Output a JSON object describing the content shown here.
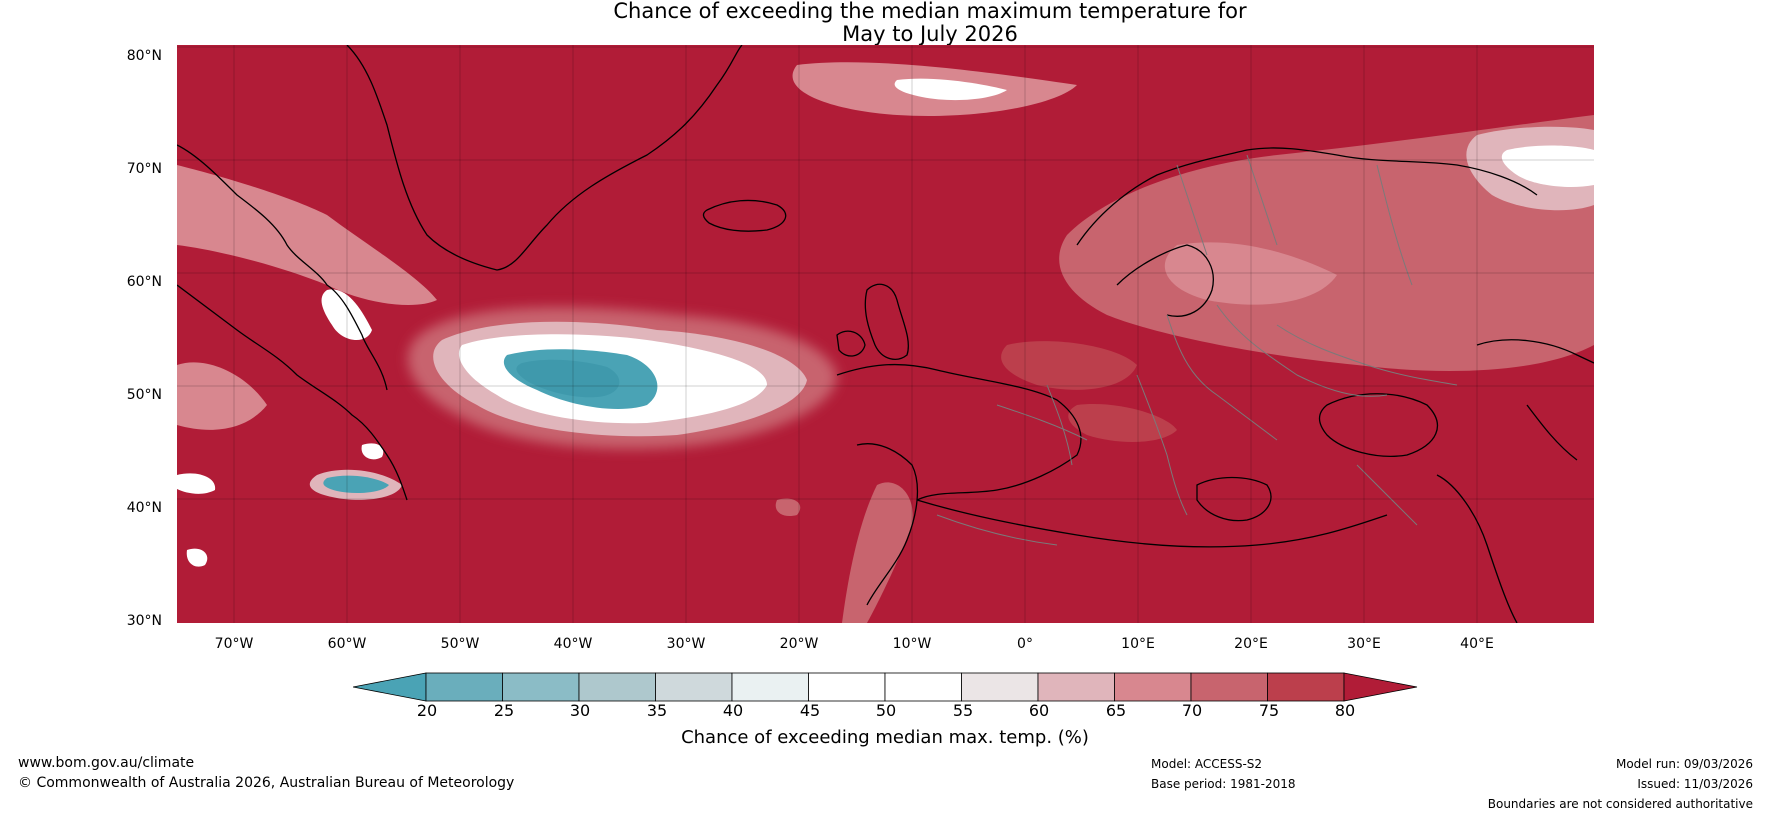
{
  "title": {
    "line1": "Chance of exceeding the median maximum temperature for",
    "line2": "May to July 2026"
  },
  "colors": {
    "ocean_background": "#b11c37",
    "coast": "#000000",
    "borders": "#7a7a7a"
  },
  "axes": {
    "lat_labels": [
      "80°N",
      "70°N",
      "60°N",
      "50°N",
      "40°N",
      "30°N"
    ],
    "lon_labels": [
      "70°W",
      "60°W",
      "50°W",
      "40°W",
      "30°W",
      "20°W",
      "10°W",
      "0°",
      "10°E",
      "20°E",
      "30°E",
      "40°E"
    ]
  },
  "colorbar": {
    "ticks": [
      "20",
      "25",
      "30",
      "35",
      "40",
      "45",
      "50",
      "55",
      "60",
      "65",
      "70",
      "75",
      "80"
    ],
    "colors": [
      "#4aa3b5",
      "#6aaebc",
      "#8bbcc6",
      "#aec8cd",
      "#cfd9dc",
      "#eaf1f2",
      "#ffffff",
      "#ffffff",
      "#ebe5e6",
      "#e0b5bb",
      "#d8878f",
      "#c8646e",
      "#bc3f4c",
      "#b11c37"
    ],
    "label": "Chance of exceeding median max. temp. (%)"
  },
  "footer": {
    "url": "www.bom.gov.au/climate",
    "copyright": "© Commonwealth of Australia 2026, Australian Bureau of Meteorology",
    "model": "Model: ACCESS-S2",
    "base_period": "Base period: 1981-2018",
    "model_run": "Model run: 09/03/2026",
    "issued": "Issued: 11/03/2026",
    "disclaimer": "Boundaries are not considered authoritative"
  }
}
